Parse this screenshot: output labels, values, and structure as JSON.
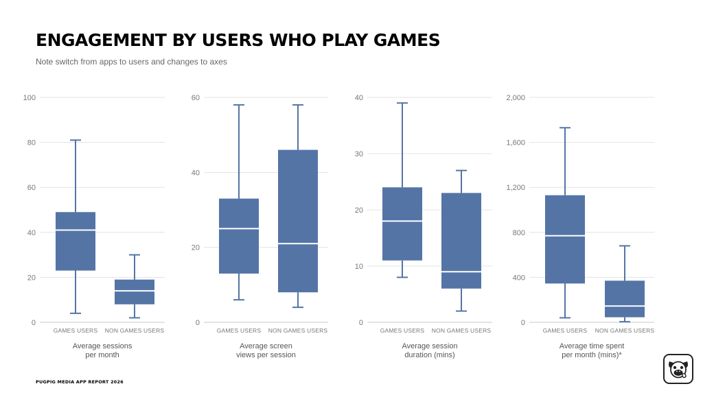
{
  "header": {
    "title": "ENGAGEMENT BY USERS WHO PLAY GAMES",
    "subtitle": "Note switch from apps to users and changes to axes"
  },
  "footer": {
    "text": "PUGPIG MEDIA APP REPORT 2026"
  },
  "logo": {
    "icon": "pug-icon"
  },
  "colors": {
    "box": "#5474a6",
    "median": "#ffffff",
    "grid": "#e3e3e3",
    "tick": "#777777",
    "label": "#555555"
  },
  "chart_data": [
    {
      "type": "box",
      "title": "Average sessions per month",
      "caption_lines": [
        "Average sessions",
        "per month"
      ],
      "categories": [
        "GAMES USERS",
        "NON GAMES USERS"
      ],
      "ylim": [
        0,
        100
      ],
      "ticks": [
        0,
        20,
        40,
        60,
        80,
        100
      ],
      "tick_labels": [
        "0",
        "20",
        "40",
        "60",
        "80",
        "100"
      ],
      "boxes": [
        {
          "min": 4,
          "q1": 23,
          "median": 41,
          "q3": 49,
          "max": 81
        },
        {
          "min": 2,
          "q1": 8,
          "median": 14,
          "q3": 19,
          "max": 30
        }
      ]
    },
    {
      "type": "box",
      "title": "Average screen views per session",
      "caption_lines": [
        "Average screen",
        "views per session"
      ],
      "categories": [
        "GAMES USERS",
        "NON GAMES USERS"
      ],
      "ylim": [
        0,
        60
      ],
      "ticks": [
        0,
        20,
        40,
        60
      ],
      "tick_labels": [
        "0",
        "20",
        "40",
        "60"
      ],
      "boxes": [
        {
          "min": 6,
          "q1": 13,
          "median": 25,
          "q3": 33,
          "max": 58
        },
        {
          "min": 4,
          "q1": 8,
          "median": 21,
          "q3": 46,
          "max": 58
        }
      ]
    },
    {
      "type": "box",
      "title": "Average session duration (mins)",
      "caption_lines": [
        "Average session",
        "duration (mins)"
      ],
      "categories": [
        "GAMES USERS",
        "NON GAMES USERS"
      ],
      "ylim": [
        0,
        40
      ],
      "ticks": [
        0,
        10,
        20,
        30,
        40
      ],
      "tick_labels": [
        "0",
        "10",
        "20",
        "30",
        "40"
      ],
      "boxes": [
        {
          "min": 8,
          "q1": 11,
          "median": 18,
          "q3": 24,
          "max": 39
        },
        {
          "min": 2,
          "q1": 6,
          "median": 9,
          "q3": 23,
          "max": 27
        }
      ]
    },
    {
      "type": "box",
      "title": "Average time spent per month (mins)*",
      "caption_lines": [
        "Average time spent",
        "per month (mins)*"
      ],
      "categories": [
        "GAMES USERS",
        "NON GAMES USERS"
      ],
      "ylim": [
        0,
        2000
      ],
      "ticks": [
        0,
        400,
        800,
        1200,
        1600,
        2000
      ],
      "tick_labels": [
        "0",
        "400",
        "800",
        "1,200",
        "1,600",
        "2,000"
      ],
      "boxes": [
        {
          "min": 40,
          "q1": 345,
          "median": 770,
          "q3": 1130,
          "max": 1730
        },
        {
          "min": 5,
          "q1": 45,
          "median": 145,
          "q3": 370,
          "max": 680
        }
      ]
    }
  ]
}
